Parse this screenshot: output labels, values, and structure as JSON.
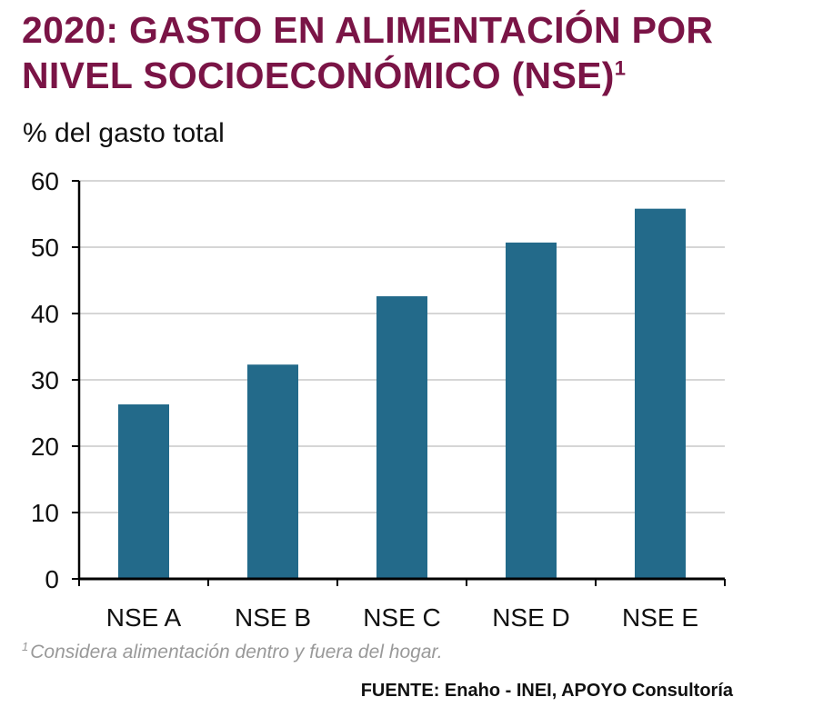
{
  "chart_data": {
    "type": "bar",
    "title": "2020: GASTO EN ALIMENTACIÓN POR NIVEL SOCIOECONÓMICO (NSE)",
    "title_superscript": "1",
    "ylabel": "% del gasto total",
    "xlabel": "",
    "categories": [
      "NSE A",
      "NSE B",
      "NSE C",
      "NSE D",
      "NSE E"
    ],
    "values": [
      26.3,
      32.3,
      42.6,
      50.7,
      55.8
    ],
    "ylim": [
      0,
      60
    ],
    "yticks": [
      0,
      10,
      20,
      30,
      40,
      50,
      60
    ],
    "grid": true,
    "bar_color": "#236a8a",
    "grid_color": "#c8c8c8",
    "axis_color": "#000000"
  },
  "footnote": {
    "marker": "1",
    "text": "Considera alimentación dentro y fuera del hogar."
  },
  "source": "FUENTE: Enaho - INEI, APOYO Consultoría",
  "colors": {
    "title": "#7a1446",
    "footnote": "#999999"
  }
}
